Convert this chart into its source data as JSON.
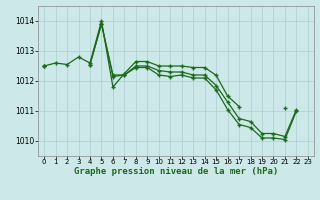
{
  "hours": [
    0,
    1,
    2,
    3,
    4,
    5,
    6,
    7,
    8,
    9,
    10,
    11,
    12,
    13,
    14,
    15,
    16,
    17,
    18,
    19,
    20,
    21,
    22,
    23
  ],
  "series": [
    [
      1012.5,
      1012.6,
      1012.55,
      1012.8,
      1012.6,
      1014.0,
      1011.8,
      1012.25,
      1012.65,
      1012.65,
      1012.5,
      1012.5,
      1012.5,
      1012.45,
      1012.45,
      1012.19,
      1011.5,
      1011.15,
      null,
      null,
      null,
      1011.1,
      null,
      null
    ],
    [
      1012.5,
      null,
      null,
      null,
      1012.55,
      1013.9,
      1012.2,
      1012.2,
      1012.5,
      1012.5,
      1012.35,
      1012.3,
      1012.3,
      1012.2,
      1012.2,
      1011.85,
      1011.3,
      1010.75,
      1010.65,
      1010.25,
      1010.25,
      1010.15,
      1011.05,
      null
    ],
    [
      1012.5,
      null,
      null,
      null,
      1012.55,
      1013.9,
      1012.15,
      1012.2,
      1012.45,
      1012.45,
      1012.2,
      1012.15,
      1012.2,
      1012.1,
      1012.1,
      1011.7,
      1011.05,
      1010.55,
      1010.45,
      1010.1,
      1010.1,
      1010.05,
      1011.0,
      null
    ]
  ],
  "bg_color": "#cce8e8",
  "grid_color": "#aacfcf",
  "line_color": "#1a6b1a",
  "marker": "+",
  "xlabel": "Graphe pression niveau de la mer (hPa)",
  "ylim": [
    1009.5,
    1014.5
  ],
  "yticks": [
    1010,
    1011,
    1012,
    1013,
    1014
  ],
  "xlim": [
    -0.5,
    23.5
  ],
  "xticks": [
    0,
    1,
    2,
    3,
    4,
    5,
    6,
    7,
    8,
    9,
    10,
    11,
    12,
    13,
    14,
    15,
    16,
    17,
    18,
    19,
    20,
    21,
    22,
    23
  ],
  "figsize": [
    3.2,
    2.0
  ],
  "dpi": 100
}
